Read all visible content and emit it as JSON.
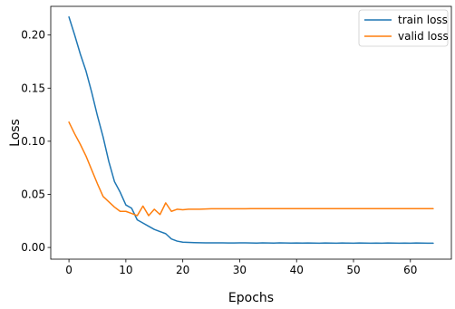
{
  "chart_data": {
    "type": "line",
    "title": "",
    "xlabel": "Epochs",
    "ylabel": "Loss",
    "xlim": [
      -3.2,
      67.2
    ],
    "ylim": [
      -0.011,
      0.227
    ],
    "xticks": [
      0,
      10,
      20,
      30,
      40,
      50,
      60
    ],
    "xtick_labels": [
      "0",
      "10",
      "20",
      "30",
      "40",
      "50",
      "60"
    ],
    "yticks": [
      0.0,
      0.05,
      0.1,
      0.15,
      0.2
    ],
    "ytick_labels": [
      "0.00",
      "0.05",
      "0.10",
      "0.15",
      "0.20"
    ],
    "grid": false,
    "legend_position": "top-right",
    "x": [
      0,
      1,
      2,
      3,
      4,
      5,
      6,
      7,
      8,
      9,
      10,
      11,
      12,
      13,
      14,
      15,
      16,
      17,
      18,
      19,
      20,
      21,
      22,
      23,
      24,
      25,
      26,
      27,
      28,
      29,
      30,
      31,
      32,
      33,
      34,
      35,
      36,
      37,
      38,
      39,
      40,
      41,
      42,
      43,
      44,
      45,
      46,
      47,
      48,
      49,
      50,
      51,
      52,
      53,
      54,
      55,
      56,
      57,
      58,
      59,
      60,
      61,
      62,
      63,
      64
    ],
    "series": [
      {
        "name": "train loss",
        "color": "#1f77b4",
        "values": [
          0.217,
          0.2,
          0.182,
          0.166,
          0.146,
          0.124,
          0.104,
          0.081,
          0.062,
          0.052,
          0.04,
          0.037,
          0.026,
          0.023,
          0.02,
          0.017,
          0.015,
          0.013,
          0.008,
          0.006,
          0.005,
          0.0048,
          0.0046,
          0.0045,
          0.0044,
          0.0044,
          0.0043,
          0.0043,
          0.0042,
          0.0042,
          0.0043,
          0.0044,
          0.0042,
          0.0041,
          0.0043,
          0.0042,
          0.0041,
          0.0043,
          0.0042,
          0.0041,
          0.0042,
          0.0041,
          0.0042,
          0.0041,
          0.004,
          0.0042,
          0.0041,
          0.004,
          0.0042,
          0.0041,
          0.004,
          0.0042,
          0.0041,
          0.004,
          0.0041,
          0.004,
          0.0042,
          0.0041,
          0.004,
          0.0041,
          0.004,
          0.0042,
          0.0041,
          0.004,
          0.004
        ]
      },
      {
        "name": "valid loss",
        "color": "#ff7f0e",
        "values": [
          0.118,
          0.107,
          0.097,
          0.086,
          0.073,
          0.06,
          0.048,
          0.043,
          0.038,
          0.034,
          0.034,
          0.032,
          0.03,
          0.039,
          0.03,
          0.036,
          0.031,
          0.042,
          0.034,
          0.036,
          0.0355,
          0.036,
          0.036,
          0.036,
          0.0362,
          0.0365,
          0.0365,
          0.0365,
          0.0365,
          0.0365,
          0.0365,
          0.0365,
          0.0366,
          0.0366,
          0.0366,
          0.0366,
          0.0366,
          0.0366,
          0.0366,
          0.0366,
          0.0366,
          0.0366,
          0.0366,
          0.0366,
          0.0366,
          0.0366,
          0.0366,
          0.0366,
          0.0366,
          0.0366,
          0.0366,
          0.0366,
          0.0366,
          0.0366,
          0.0366,
          0.0366,
          0.0366,
          0.0366,
          0.0366,
          0.0366,
          0.0366,
          0.0366,
          0.0366,
          0.0366,
          0.0366
        ]
      }
    ]
  }
}
